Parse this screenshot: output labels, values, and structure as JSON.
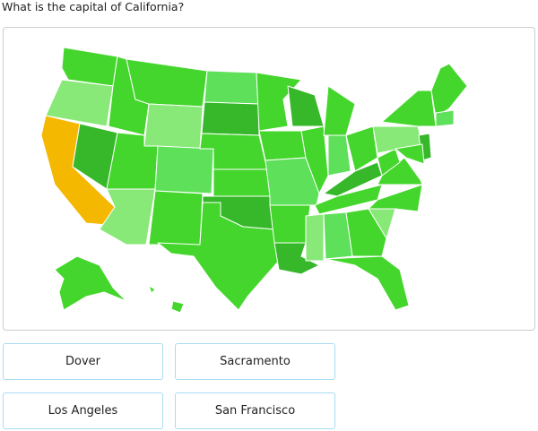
{
  "question": "What is the capital of California?",
  "options": [
    "Dover",
    "Sacramento",
    "Los Angeles",
    "San Francisco"
  ]
}
